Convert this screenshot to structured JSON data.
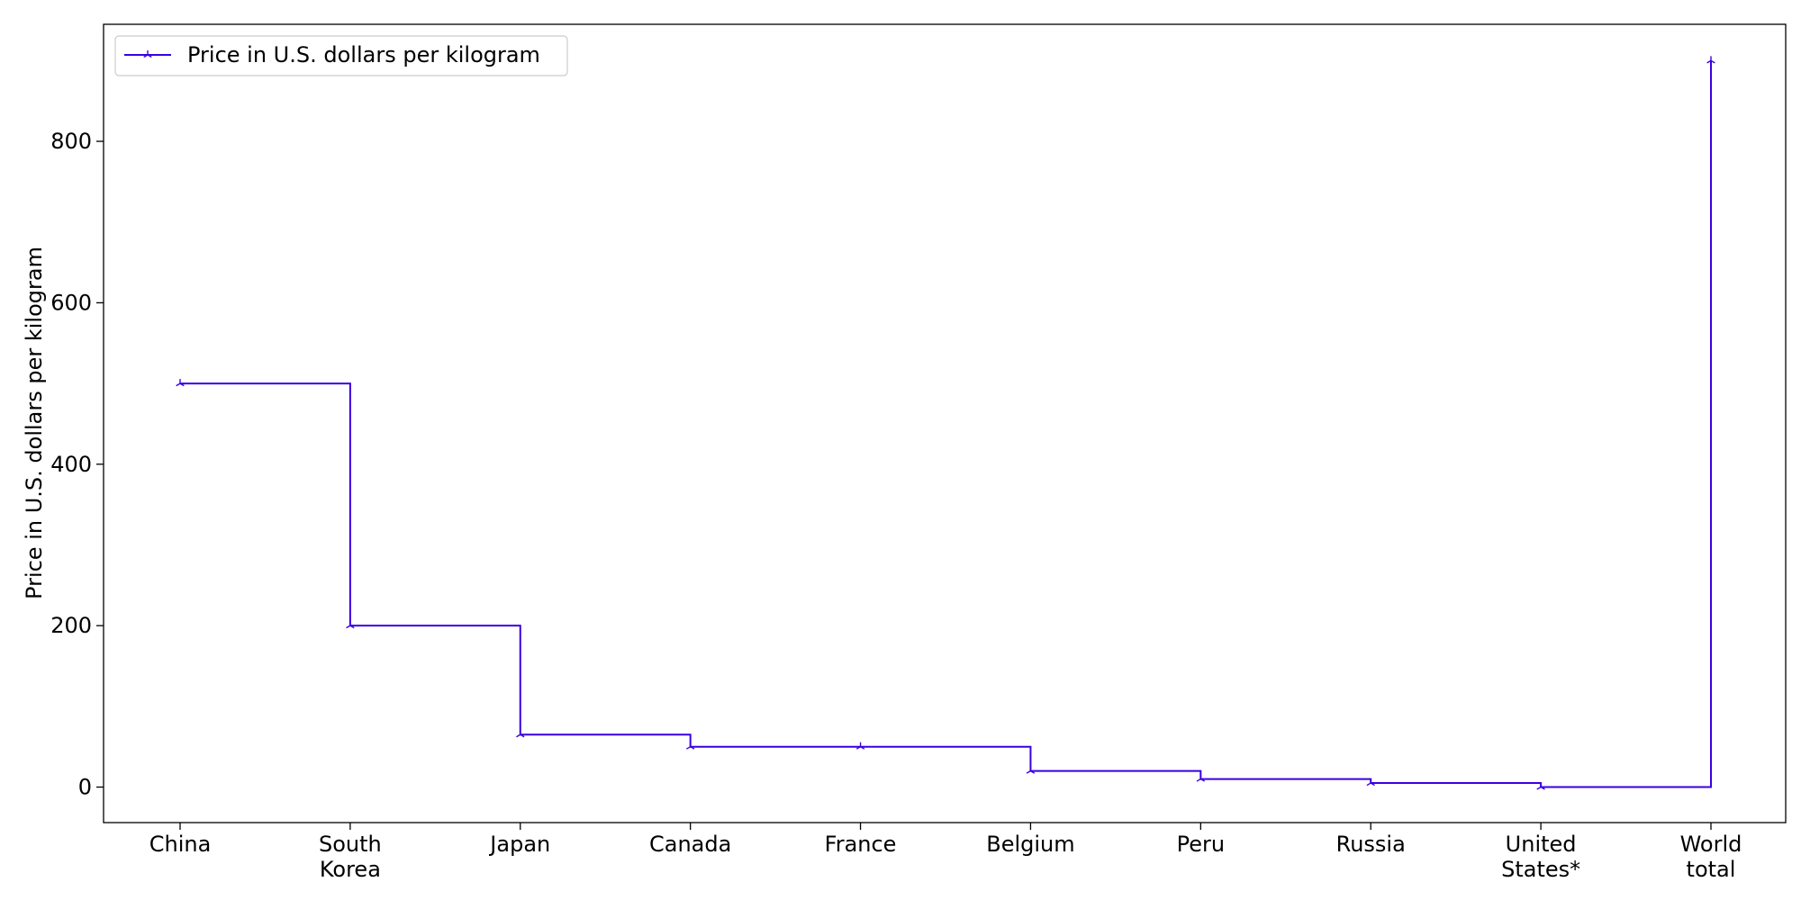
{
  "chart_data": {
    "type": "line",
    "step": "post",
    "title": "",
    "xlabel": "",
    "ylabel": "Price in U.S. dollars per kilogram",
    "categories": [
      "China",
      "South Korea",
      "Japan",
      "Canada",
      "France",
      "Belgium",
      "Peru",
      "Russia",
      "United States*",
      "World total"
    ],
    "category_labels": [
      [
        "China"
      ],
      [
        "South",
        "Korea"
      ],
      [
        "Japan"
      ],
      [
        "Canada"
      ],
      [
        "France"
      ],
      [
        "Belgium"
      ],
      [
        "Peru"
      ],
      [
        "Russia"
      ],
      [
        "United",
        "States*"
      ],
      [
        "World",
        "total"
      ]
    ],
    "series": [
      {
        "name": "Price in U.S. dollars per kilogram",
        "color": "#3a00e0",
        "marker": "tri-up",
        "values": [
          500,
          200,
          65,
          50,
          50,
          20,
          10,
          5,
          0,
          900
        ]
      }
    ],
    "ylim": [
      -44,
      945
    ],
    "yticks": [
      0,
      200,
      400,
      600,
      800
    ],
    "grid": false,
    "legend": "upper left"
  }
}
